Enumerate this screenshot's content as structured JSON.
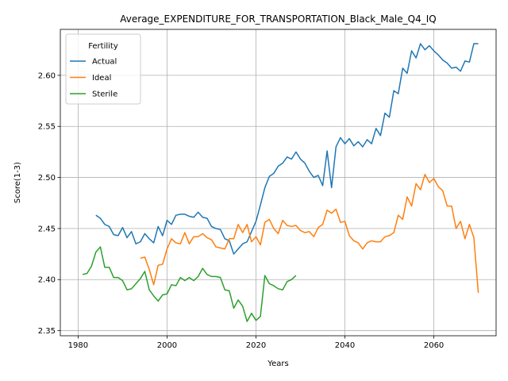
{
  "chart_data": {
    "type": "line",
    "title": "Average_EXPENDITURE_FOR_TRANSPORTATION_Black_Male_Q4_IQ",
    "xlabel": "Years",
    "ylabel": "Score(1-3)",
    "xlim": [
      1976,
      2074
    ],
    "ylim": [
      2.345,
      2.645
    ],
    "xticks": [
      1980,
      2000,
      2020,
      2040,
      2060
    ],
    "yticks": [
      2.35,
      2.4,
      2.45,
      2.5,
      2.55,
      2.6
    ],
    "ytick_labels": [
      "2.35",
      "2.40",
      "2.45",
      "2.50",
      "2.55",
      "2.60"
    ],
    "grid": true,
    "legend": {
      "title": "Fertility",
      "placement": "top-left"
    },
    "series": [
      {
        "name": "Actual",
        "color": "#1f77b4",
        "x": [
          1984,
          1985,
          1986,
          1987,
          1988,
          1989,
          1990,
          1991,
          1992,
          1993,
          1994,
          1995,
          1996,
          1997,
          1998,
          1999,
          2000,
          2001,
          2002,
          2003,
          2004,
          2005,
          2006,
          2007,
          2008,
          2009,
          2010,
          2011,
          2012,
          2013,
          2014,
          2015,
          2016,
          2017,
          2018,
          2019,
          2020,
          2021,
          2022,
          2023,
          2024,
          2025,
          2026,
          2027,
          2028,
          2029,
          2030,
          2031,
          2032,
          2033,
          2034,
          2035,
          2036,
          2037,
          2038,
          2039,
          2040,
          2041,
          2042,
          2043,
          2044,
          2045,
          2046,
          2047,
          2048,
          2049,
          2050,
          2051,
          2052,
          2053,
          2054,
          2055,
          2056,
          2057,
          2058,
          2059,
          2060,
          2061,
          2062,
          2063,
          2064,
          2065,
          2066,
          2067,
          2068,
          2069,
          2070
        ],
        "values": [
          2.463,
          2.46,
          2.454,
          2.452,
          2.444,
          2.443,
          2.451,
          2.441,
          2.447,
          2.435,
          2.437,
          2.445,
          2.44,
          2.436,
          2.452,
          2.443,
          2.458,
          2.454,
          2.463,
          2.464,
          2.464,
          2.462,
          2.461,
          2.466,
          2.461,
          2.46,
          2.452,
          2.45,
          2.449,
          2.44,
          2.438,
          2.425,
          2.43,
          2.435,
          2.437,
          2.447,
          2.457,
          2.473,
          2.49,
          2.501,
          2.504,
          2.511,
          2.514,
          2.52,
          2.518,
          2.525,
          2.518,
          2.514,
          2.506,
          2.5,
          2.502,
          2.492,
          2.526,
          2.49,
          2.53,
          2.539,
          2.533,
          2.538,
          2.531,
          2.535,
          2.53,
          2.537,
          2.533,
          2.548,
          2.541,
          2.563,
          2.559,
          2.585,
          2.582,
          2.607,
          2.602,
          2.624,
          2.617,
          2.631,
          2.625,
          2.629,
          2.624,
          2.62,
          2.615,
          2.612,
          2.607,
          2.608,
          2.604,
          2.614,
          2.613,
          2.631,
          2.631
        ]
      },
      {
        "name": "Ideal",
        "color": "#ff7f0e",
        "x": [
          1994,
          1995,
          1996,
          1997,
          1998,
          1999,
          2000,
          2001,
          2002,
          2003,
          2004,
          2005,
          2006,
          2007,
          2008,
          2009,
          2010,
          2011,
          2012,
          2013,
          2014,
          2015,
          2016,
          2017,
          2018,
          2019,
          2020,
          2021,
          2022,
          2023,
          2024,
          2025,
          2026,
          2027,
          2028,
          2029,
          2030,
          2031,
          2032,
          2033,
          2034,
          2035,
          2036,
          2037,
          2038,
          2039,
          2040,
          2041,
          2042,
          2043,
          2044,
          2045,
          2046,
          2047,
          2048,
          2049,
          2050,
          2051,
          2052,
          2053,
          2054,
          2055,
          2056,
          2057,
          2058,
          2059,
          2060,
          2061,
          2062,
          2063,
          2064,
          2065,
          2066,
          2067,
          2068,
          2069,
          2070
        ],
        "values": [
          2.421,
          2.422,
          2.41,
          2.395,
          2.414,
          2.415,
          2.43,
          2.44,
          2.436,
          2.435,
          2.446,
          2.435,
          2.442,
          2.442,
          2.445,
          2.441,
          2.439,
          2.432,
          2.431,
          2.43,
          2.44,
          2.44,
          2.454,
          2.446,
          2.454,
          2.437,
          2.442,
          2.434,
          2.456,
          2.459,
          2.45,
          2.445,
          2.458,
          2.453,
          2.452,
          2.453,
          2.448,
          2.446,
          2.447,
          2.442,
          2.451,
          2.454,
          2.468,
          2.465,
          2.469,
          2.456,
          2.457,
          2.443,
          2.438,
          2.436,
          2.43,
          2.436,
          2.438,
          2.437,
          2.437,
          2.442,
          2.443,
          2.446,
          2.463,
          2.459,
          2.481,
          2.472,
          2.494,
          2.488,
          2.503,
          2.495,
          2.499,
          2.491,
          2.487,
          2.472,
          2.472,
          2.45,
          2.457,
          2.44,
          2.454,
          2.441,
          2.387
        ]
      },
      {
        "name": "Sterile",
        "color": "#2ca02c",
        "x": [
          1981,
          1982,
          1983,
          1984,
          1985,
          1986,
          1987,
          1988,
          1989,
          1990,
          1991,
          1992,
          1993,
          1994,
          1995,
          1996,
          1997,
          1998,
          1999,
          2000,
          2001,
          2002,
          2003,
          2004,
          2005,
          2006,
          2007,
          2008,
          2009,
          2010,
          2011,
          2012,
          2013,
          2014,
          2015,
          2016,
          2017,
          2018,
          2019,
          2020,
          2021,
          2022,
          2023,
          2024,
          2025,
          2026,
          2027,
          2028,
          2029
        ],
        "values": [
          2.405,
          2.406,
          2.413,
          2.427,
          2.432,
          2.412,
          2.412,
          2.402,
          2.402,
          2.399,
          2.39,
          2.391,
          2.396,
          2.401,
          2.408,
          2.39,
          2.384,
          2.379,
          2.385,
          2.386,
          2.395,
          2.394,
          2.402,
          2.399,
          2.402,
          2.399,
          2.403,
          2.411,
          2.405,
          2.403,
          2.403,
          2.402,
          2.39,
          2.389,
          2.372,
          2.38,
          2.374,
          2.359,
          2.367,
          2.36,
          2.364,
          2.404,
          2.396,
          2.394,
          2.391,
          2.39,
          2.398,
          2.4,
          2.404
        ]
      }
    ]
  }
}
